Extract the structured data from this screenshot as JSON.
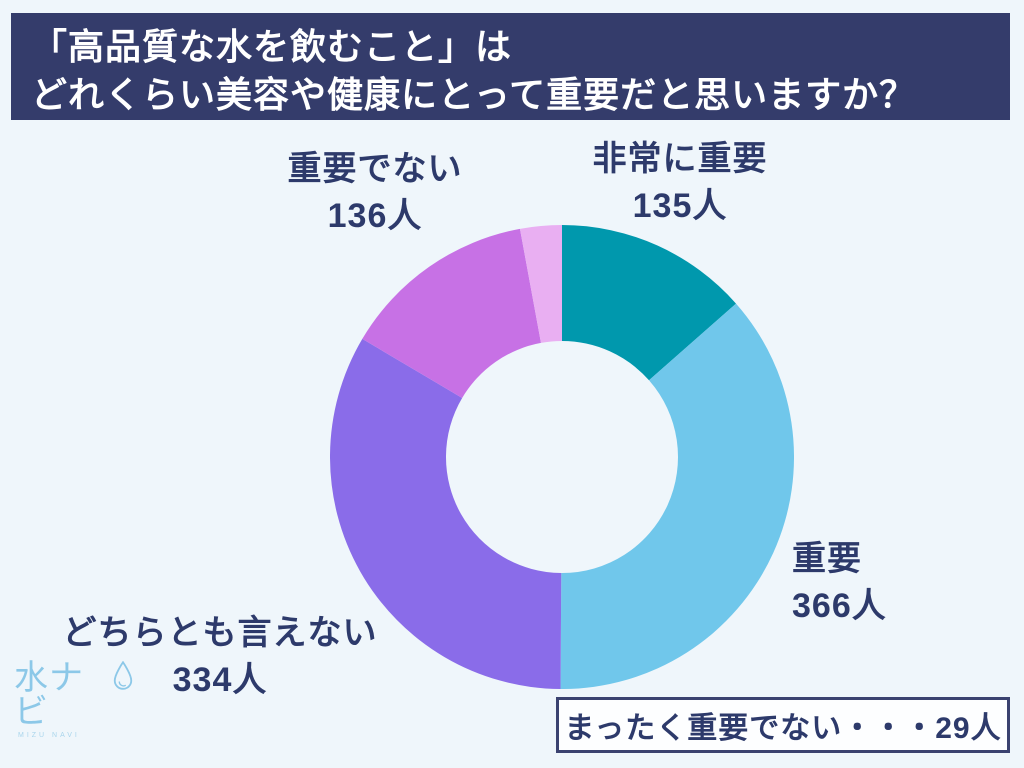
{
  "header": {
    "line1": "「高品質な水を飲むこと」は",
    "line2": "どれくらい美容や健康にとって重要だと思いますか？"
  },
  "chart_data": {
    "type": "pie",
    "subtype": "donut",
    "title": "「高品質な水を飲むこと」はどれくらい美容や健康にとって重要だと思いますか？",
    "unit": "人",
    "total": 1000,
    "donut_hole_ratio": 0.5,
    "start_angle_deg": 0,
    "direction": "clockwise",
    "background_color": "#eff6fb",
    "label_color": "#2d3a6b",
    "segments": [
      {
        "label": "非常に重要",
        "value": 135,
        "count_label": "135人",
        "color": "#0098ad"
      },
      {
        "label": "重要",
        "value": 366,
        "count_label": "366人",
        "color": "#70c7eb"
      },
      {
        "label": "どちらとも言えない",
        "value": 334,
        "count_label": "334人",
        "color": "#8a6ce9"
      },
      {
        "label": "重要でない",
        "value": 136,
        "count_label": "136人",
        "color": "#c771e5"
      },
      {
        "label": "まったく重要でない",
        "value": 29,
        "count_label": "29人",
        "color": "#e9aff2",
        "note_label": "まったく重要でない・・・29人"
      }
    ]
  },
  "logo": {
    "text": "水ナビ",
    "subtext": "MIZU NAVI",
    "color": "#8cc8e8"
  }
}
